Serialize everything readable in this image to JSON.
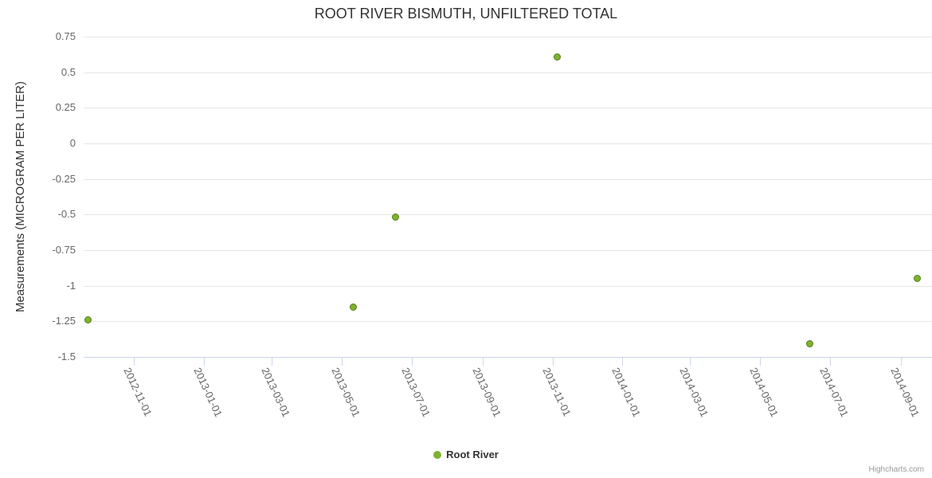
{
  "title": "ROOT RIVER BISMUTH, UNFILTERED TOTAL",
  "credit": "Highcharts.com",
  "legend": {
    "items": [
      {
        "label": "Root River",
        "color": "#7db32d"
      }
    ]
  },
  "chart_data": {
    "type": "scatter",
    "title": "ROOT RIVER BISMUTH, UNFILTERED TOTAL",
    "xlabel": "",
    "ylabel": "Measurements (MICROGRAM PER LITER)",
    "ylim": [
      -1.5,
      0.75
    ],
    "xlim": [
      "2012-09-18",
      "2014-09-28"
    ],
    "grid": true,
    "legend_position": "bottom",
    "y_ticks": [
      0.75,
      0.5,
      0.25,
      0,
      -0.25,
      -0.5,
      -0.75,
      -1,
      -1.25,
      -1.5
    ],
    "x_ticks": [
      "2012-11-01",
      "2013-01-01",
      "2013-03-01",
      "2013-05-01",
      "2013-07-01",
      "2013-09-01",
      "2013-11-01",
      "2014-01-01",
      "2014-03-01",
      "2014-05-01",
      "2014-07-01",
      "2014-09-01"
    ],
    "series": [
      {
        "name": "Root River",
        "marker_color": "#7db32d",
        "marker_border_color": "#577d1d",
        "data": [
          {
            "x": "2012-09-22",
            "y": -1.24
          },
          {
            "x": "2013-05-11",
            "y": -1.15
          },
          {
            "x": "2013-06-17",
            "y": -0.52
          },
          {
            "x": "2013-11-05",
            "y": 0.61
          },
          {
            "x": "2014-06-13",
            "y": -1.41
          },
          {
            "x": "2014-09-15",
            "y": -0.95
          }
        ]
      }
    ]
  }
}
